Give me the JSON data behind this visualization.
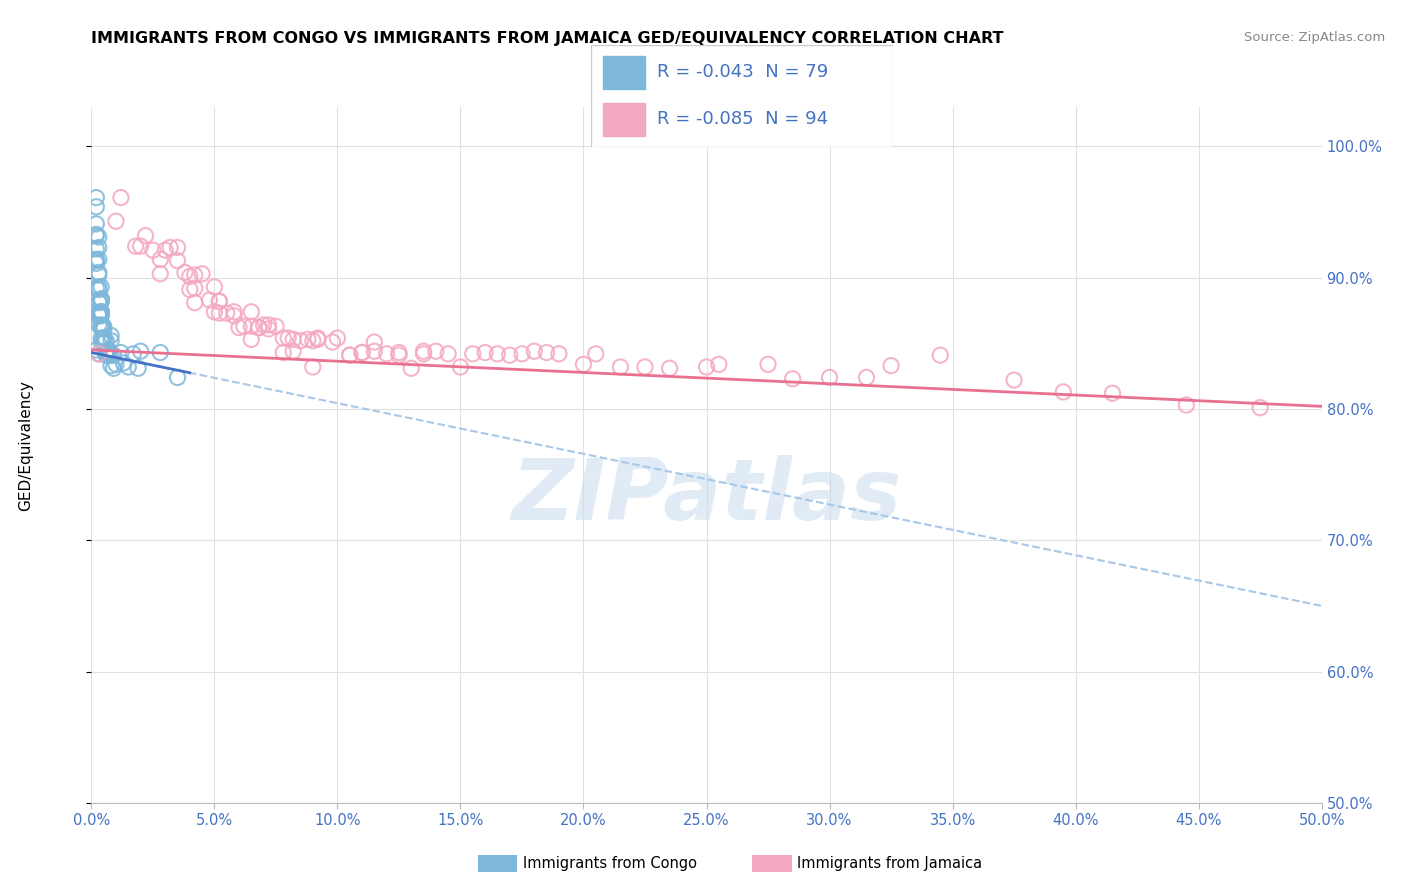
{
  "title": "IMMIGRANTS FROM CONGO VS IMMIGRANTS FROM JAMAICA GED/EQUIVALENCY CORRELATION CHART",
  "source": "Source: ZipAtlas.com",
  "ylabel": "GED/Equivalency",
  "xmin": 0.0,
  "xmax": 50.0,
  "ymin": 50.0,
  "ymax": 103.0,
  "ytick_vals": [
    50.0,
    60.0,
    70.0,
    80.0,
    90.0,
    100.0
  ],
  "xtick_vals": [
    0.0,
    5.0,
    10.0,
    15.0,
    20.0,
    25.0,
    30.0,
    35.0,
    40.0,
    45.0,
    50.0
  ],
  "legend_r1": "-0.043",
  "legend_n1": "79",
  "legend_r2": "-0.085",
  "legend_n2": "94",
  "color_congo": "#7db8da",
  "color_jamaica": "#f4a8bf",
  "color_trend_congo_solid": "#4472c4",
  "color_trend_congo_dashed": "#a8c8e8",
  "color_trend_jamaica": "#e87090",
  "tick_color": "#4472c4",
  "watermark": "ZIPatlas",
  "congo_trend_x0": 0.0,
  "congo_trend_y0": 84.3,
  "congo_trend_x1": 50.0,
  "congo_trend_y1": 65.0,
  "jamaica_trend_x0": 0.0,
  "jamaica_trend_y0": 84.5,
  "jamaica_trend_x1": 50.0,
  "jamaica_trend_y1": 80.2,
  "congo_x": [
    0.2,
    0.3,
    0.4,
    0.3,
    0.5,
    0.4,
    0.3,
    0.4,
    0.6,
    0.5,
    0.8,
    0.9,
    0.3,
    0.2,
    0.4,
    0.5,
    0.6,
    0.3,
    0.4,
    0.7,
    1.2,
    0.8,
    0.3,
    0.2,
    0.4,
    0.2,
    0.5,
    0.6,
    0.4,
    0.3,
    0.7,
    0.5,
    0.4,
    0.8,
    0.2,
    1.3,
    0.3,
    0.4,
    0.6,
    0.2,
    0.5,
    0.4,
    0.7,
    0.3,
    0.5,
    0.4,
    0.6,
    0.3,
    0.2,
    0.5,
    0.6,
    1.5,
    0.4,
    0.2,
    0.8,
    0.3,
    0.4,
    0.9,
    0.5,
    0.4,
    2.0,
    0.2,
    0.6,
    0.5,
    0.3,
    0.4,
    0.2,
    2.8,
    0.3,
    1.7,
    0.3,
    0.5,
    0.6,
    3.5,
    0.4,
    0.2,
    1.9,
    1.0,
    0.7
  ],
  "congo_y": [
    84.5,
    84.2,
    85.1,
    87.3,
    85.4,
    86.2,
    88.1,
    87.4,
    84.3,
    85.2,
    85.6,
    84.1,
    86.4,
    89.2,
    88.3,
    85.1,
    84.2,
    90.4,
    87.1,
    84.5,
    84.3,
    85.2,
    93.1,
    91.4,
    89.3,
    92.2,
    86.1,
    84.4,
    86.3,
    88.2,
    84.1,
    85.4,
    87.2,
    83.3,
    91.1,
    83.5,
    90.2,
    86.4,
    84.3,
    94.1,
    85.3,
    88.2,
    84.4,
    92.3,
    85.1,
    87.4,
    84.2,
    89.3,
    95.4,
    86.1,
    84.3,
    83.2,
    88.4,
    91.3,
    84.1,
    87.2,
    85.4,
    83.1,
    85.3,
    88.2,
    84.4,
    96.1,
    85.2,
    86.3,
    89.1,
    87.4,
    93.2,
    84.3,
    87.1,
    84.2,
    91.4,
    85.3,
    84.1,
    82.4,
    86.2,
    93.3,
    83.1,
    83.4,
    84.2
  ],
  "jamaica_x": [
    0.3,
    1.2,
    2.8,
    1.8,
    4.2,
    6.5,
    9.0,
    5.0,
    10.5,
    3.5,
    6.0,
    8.2,
    13.0,
    2.2,
    1.0,
    14.5,
    4.0,
    5.5,
    18.0,
    8.5,
    2.8,
    7.5,
    11.5,
    5.2,
    7.8,
    20.0,
    2.5,
    13.5,
    6.5,
    11.0,
    4.2,
    3.2,
    17.0,
    7.2,
    22.5,
    4.8,
    9.2,
    15.5,
    2.0,
    12.5,
    5.8,
    25.0,
    4.5,
    10.0,
    6.8,
    18.5,
    3.0,
    14.0,
    8.2,
    27.5,
    5.2,
    10.5,
    6.2,
    21.5,
    3.8,
    16.0,
    9.0,
    30.0,
    3.5,
    12.0,
    7.0,
    34.5,
    5.0,
    17.5,
    7.8,
    39.5,
    4.2,
    12.5,
    25.5,
    6.5,
    20.5,
    9.8,
    44.5,
    15.0,
    31.5,
    7.2,
    8.8,
    37.5,
    11.5,
    5.2,
    16.5,
    8.0,
    41.5,
    11.0,
    23.5,
    5.8,
    28.5,
    4.0,
    19.0,
    9.2,
    47.5,
    13.5,
    6.8,
    32.5
  ],
  "jamaica_y": [
    84.2,
    96.1,
    90.3,
    92.4,
    88.1,
    85.3,
    83.2,
    87.4,
    84.1,
    91.3,
    86.2,
    84.4,
    83.1,
    93.2,
    94.3,
    84.2,
    90.1,
    87.3,
    84.4,
    85.2,
    91.4,
    86.3,
    85.1,
    88.2,
    84.3,
    83.4,
    92.1,
    84.2,
    87.4,
    84.3,
    89.2,
    92.3,
    84.1,
    86.4,
    83.2,
    88.3,
    85.4,
    84.2,
    92.4,
    84.3,
    87.1,
    83.2,
    90.3,
    85.4,
    86.2,
    84.3,
    92.1,
    84.4,
    85.3,
    83.4,
    88.2,
    84.1,
    86.3,
    83.2,
    90.4,
    84.3,
    85.2,
    82.4,
    92.3,
    84.2,
    86.4,
    84.1,
    89.3,
    84.2,
    85.4,
    81.3,
    90.2,
    84.1,
    83.4,
    86.3,
    84.2,
    85.1,
    80.3,
    83.2,
    82.4,
    86.1,
    85.3,
    82.2,
    84.4,
    87.3,
    84.2,
    85.4,
    81.2,
    84.3,
    83.1,
    87.4,
    82.3,
    89.1,
    84.2,
    85.3,
    80.1,
    84.4,
    86.2,
    83.3
  ]
}
